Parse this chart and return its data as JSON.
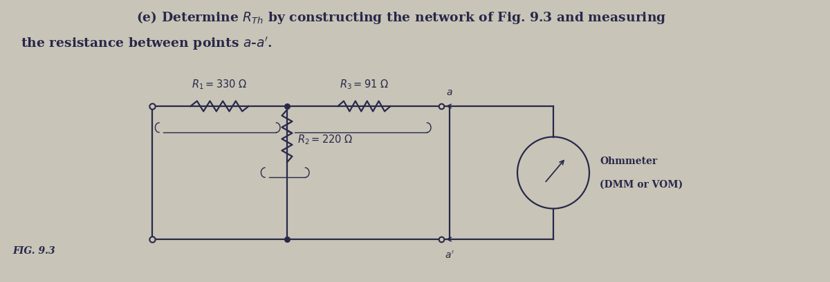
{
  "title_line1": "(e) Determine $R_{Th}$ by constructing the network of Fig. 9.3 and measuring",
  "title_line2": "the resistance between points $a$-$a'$.",
  "fig_label": "FIG. 9.3",
  "R1_label": "$R_1 = 330\\ \\Omega$",
  "R2_label": "$R_2 = 220\\ \\Omega$",
  "R3_label": "$R_3 = 91\\ \\Omega$",
  "ohmmeter_line1": "Ohmmeter",
  "ohmmeter_line2": "(DMM or VOM)",
  "bg_color": "#c8c4b8",
  "circuit_bg": "#e8e4dc",
  "line_color": "#282848",
  "text_color": "#282848",
  "font_size_title": 13.5,
  "font_size_label": 10.5,
  "font_size_fig": 10
}
